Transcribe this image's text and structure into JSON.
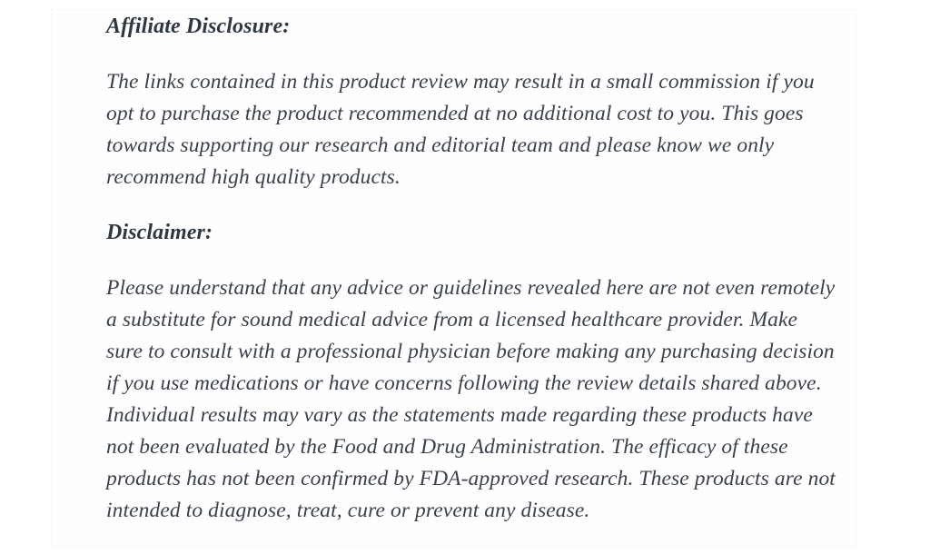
{
  "page": {
    "background_color": "#ffffff",
    "card_background_color": "#fefefe",
    "card_border_color": "#f7f7f7",
    "heading_text_color": "#2f3742",
    "body_text_color": "#3a414b"
  },
  "article": {
    "sections": [
      {
        "heading": "Affiliate Disclosure:",
        "paragraphs": [
          "The links contained in this product review may result in a small commission if you opt to purchase the product recommended at no additional cost to you. This goes towards supporting our research and editorial team and please know we only recommend high quality products."
        ]
      },
      {
        "heading": "Disclaimer:",
        "paragraphs": [
          "Please understand that any advice or guidelines revealed here are not even remotely a substitute for sound medical advice from a licensed healthcare provider. Make sure to consult with a professional physician before making any purchasing decision if you use medications or have concerns following the review details shared above. Individual results may vary as the statements made regarding these products have not been evaluated by the Food and Drug Administration. The efficacy of these products has not been confirmed by FDA-approved research. These products are not intended to diagnose, treat, cure or prevent any disease."
        ]
      }
    ]
  }
}
